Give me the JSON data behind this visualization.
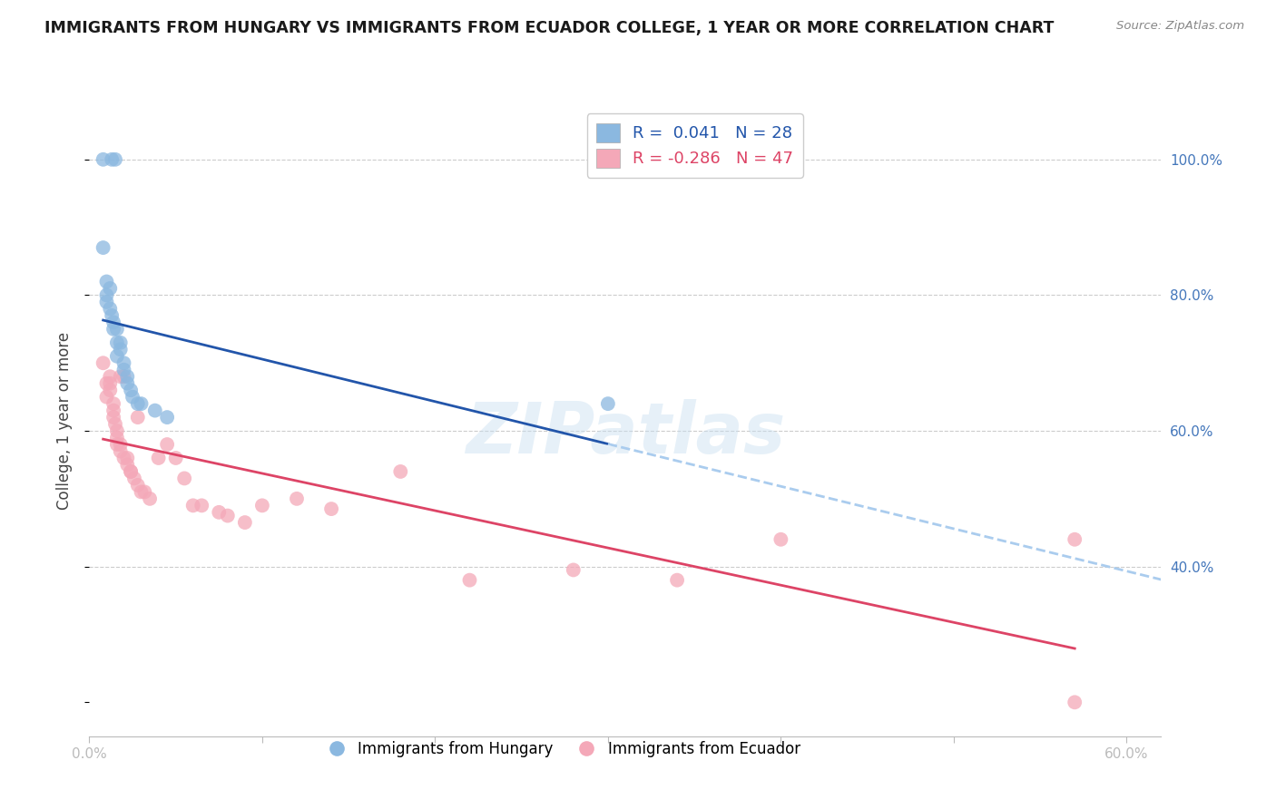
{
  "title": "IMMIGRANTS FROM HUNGARY VS IMMIGRANTS FROM ECUADOR COLLEGE, 1 YEAR OR MORE CORRELATION CHART",
  "source": "Source: ZipAtlas.com",
  "ylabel": "College, 1 year or more",
  "y_ticks_right": [
    0.4,
    0.6,
    0.8,
    1.0
  ],
  "y_tick_labels_right": [
    "40.0%",
    "60.0%",
    "80.0%",
    "100.0%"
  ],
  "xlim": [
    0.0,
    0.62
  ],
  "ylim": [
    0.15,
    1.08
  ],
  "legend1_r": "0.041",
  "legend1_n": "28",
  "legend2_r": "-0.286",
  "legend2_n": "47",
  "legend_label1": "Immigrants from Hungary",
  "legend_label2": "Immigrants from Ecuador",
  "blue_color": "#8BB8E0",
  "pink_color": "#F4A8B8",
  "blue_line_color": "#2255AA",
  "pink_line_color": "#DD4466",
  "dashed_line_color": "#AACCEE",
  "watermark": "ZIPatlas",
  "hungary_x": [
    0.008,
    0.013,
    0.015,
    0.008,
    0.01,
    0.012,
    0.01,
    0.01,
    0.012,
    0.013,
    0.014,
    0.014,
    0.016,
    0.016,
    0.018,
    0.018,
    0.016,
    0.02,
    0.02,
    0.022,
    0.022,
    0.024,
    0.025,
    0.028,
    0.03,
    0.038,
    0.045,
    0.3
  ],
  "hungary_y": [
    1.0,
    1.0,
    1.0,
    0.87,
    0.82,
    0.81,
    0.8,
    0.79,
    0.78,
    0.77,
    0.76,
    0.75,
    0.75,
    0.73,
    0.73,
    0.72,
    0.71,
    0.7,
    0.69,
    0.68,
    0.67,
    0.66,
    0.65,
    0.64,
    0.64,
    0.63,
    0.62,
    0.64
  ],
  "ecuador_x": [
    0.008,
    0.01,
    0.01,
    0.012,
    0.012,
    0.012,
    0.014,
    0.014,
    0.014,
    0.015,
    0.016,
    0.016,
    0.016,
    0.018,
    0.018,
    0.018,
    0.02,
    0.02,
    0.022,
    0.022,
    0.024,
    0.024,
    0.026,
    0.028,
    0.028,
    0.03,
    0.032,
    0.035,
    0.04,
    0.045,
    0.05,
    0.055,
    0.06,
    0.065,
    0.075,
    0.08,
    0.09,
    0.1,
    0.12,
    0.14,
    0.18,
    0.22,
    0.28,
    0.34,
    0.4,
    0.57,
    0.57
  ],
  "ecuador_y": [
    0.7,
    0.67,
    0.65,
    0.68,
    0.67,
    0.66,
    0.64,
    0.63,
    0.62,
    0.61,
    0.6,
    0.59,
    0.58,
    0.68,
    0.58,
    0.57,
    0.56,
    0.68,
    0.56,
    0.55,
    0.54,
    0.54,
    0.53,
    0.52,
    0.62,
    0.51,
    0.51,
    0.5,
    0.56,
    0.58,
    0.56,
    0.53,
    0.49,
    0.49,
    0.48,
    0.475,
    0.465,
    0.49,
    0.5,
    0.485,
    0.54,
    0.38,
    0.395,
    0.38,
    0.44,
    0.2,
    0.44
  ]
}
